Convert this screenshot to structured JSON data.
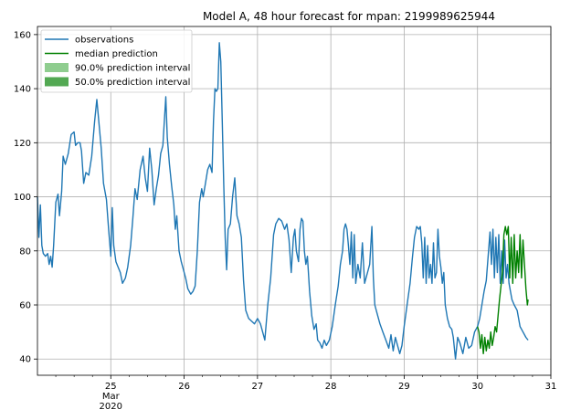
{
  "chart_data": {
    "type": "line",
    "title": "Model A, 48 hour forecast for mpan: 2199989625944",
    "xlabel": "",
    "ylabel": "",
    "x_range": [
      24.0,
      31.0
    ],
    "ylim": [
      34,
      163
    ],
    "grid": true,
    "legend_position": "top-left",
    "x_ticks": [
      {
        "x": 25,
        "label": "25",
        "sublabels": [
          "Mar",
          "2020"
        ]
      },
      {
        "x": 26,
        "label": "26"
      },
      {
        "x": 27,
        "label": "27"
      },
      {
        "x": 28,
        "label": "28"
      },
      {
        "x": 29,
        "label": "29"
      },
      {
        "x": 30,
        "label": "30"
      },
      {
        "x": 31,
        "label": "31"
      }
    ],
    "y_ticks": [
      40,
      60,
      80,
      100,
      120,
      140,
      160
    ],
    "legend": [
      {
        "label": "observations",
        "kind": "line",
        "color": "#1f77b4"
      },
      {
        "label": "median prediction",
        "kind": "line",
        "color": "#008000"
      },
      {
        "label": "90.0% prediction interval",
        "kind": "patch",
        "color": "#8fcd8f"
      },
      {
        "label": "50.0% prediction interval",
        "kind": "patch",
        "color": "#52a852"
      }
    ],
    "series": [
      {
        "name": "observations",
        "color": "#1f77b4",
        "points": [
          [
            24.0,
            100
          ],
          [
            24.02,
            85
          ],
          [
            24.04,
            97
          ],
          [
            24.06,
            82
          ],
          [
            24.08,
            79
          ],
          [
            24.11,
            78
          ],
          [
            24.14,
            79
          ],
          [
            24.16,
            75
          ],
          [
            24.18,
            78
          ],
          [
            24.2,
            74
          ],
          [
            24.22,
            82
          ],
          [
            24.25,
            98
          ],
          [
            24.28,
            101
          ],
          [
            24.3,
            93
          ],
          [
            24.33,
            102
          ],
          [
            24.35,
            115
          ],
          [
            24.38,
            112
          ],
          [
            24.42,
            116
          ],
          [
            24.46,
            123
          ],
          [
            24.5,
            124
          ],
          [
            24.52,
            119
          ],
          [
            24.55,
            120
          ],
          [
            24.58,
            120
          ],
          [
            24.6,
            117
          ],
          [
            24.63,
            105
          ],
          [
            24.66,
            109
          ],
          [
            24.7,
            108
          ],
          [
            24.74,
            115
          ],
          [
            24.78,
            128
          ],
          [
            24.81,
            136
          ],
          [
            24.84,
            127
          ],
          [
            24.87,
            118
          ],
          [
            24.9,
            105
          ],
          [
            24.94,
            99
          ],
          [
            24.97,
            88
          ],
          [
            25.0,
            78
          ],
          [
            25.02,
            96
          ],
          [
            25.04,
            82
          ],
          [
            25.07,
            76
          ],
          [
            25.1,
            74
          ],
          [
            25.13,
            72
          ],
          [
            25.16,
            68
          ],
          [
            25.2,
            70
          ],
          [
            25.23,
            74
          ],
          [
            25.27,
            82
          ],
          [
            25.3,
            92
          ],
          [
            25.33,
            103
          ],
          [
            25.36,
            99
          ],
          [
            25.4,
            110
          ],
          [
            25.44,
            115
          ],
          [
            25.47,
            107
          ],
          [
            25.5,
            102
          ],
          [
            25.53,
            118
          ],
          [
            25.56,
            110
          ],
          [
            25.59,
            97
          ],
          [
            25.62,
            103
          ],
          [
            25.65,
            108
          ],
          [
            25.68,
            116
          ],
          [
            25.71,
            119
          ],
          [
            25.73,
            128
          ],
          [
            25.75,
            137
          ],
          [
            25.77,
            122
          ],
          [
            25.8,
            112
          ],
          [
            25.83,
            104
          ],
          [
            25.86,
            97
          ],
          [
            25.88,
            88
          ],
          [
            25.9,
            93
          ],
          [
            25.93,
            80
          ],
          [
            25.96,
            76
          ],
          [
            25.99,
            73
          ],
          [
            26.02,
            70
          ],
          [
            26.05,
            66
          ],
          [
            26.09,
            64
          ],
          [
            26.12,
            65
          ],
          [
            26.15,
            67
          ],
          [
            26.18,
            80
          ],
          [
            26.21,
            98
          ],
          [
            26.24,
            103
          ],
          [
            26.26,
            100
          ],
          [
            26.29,
            105
          ],
          [
            26.32,
            110
          ],
          [
            26.35,
            112
          ],
          [
            26.38,
            109
          ],
          [
            26.4,
            128
          ],
          [
            26.42,
            140
          ],
          [
            26.44,
            139
          ],
          [
            26.46,
            140
          ],
          [
            26.48,
            157
          ],
          [
            26.5,
            150
          ],
          [
            26.52,
            128
          ],
          [
            26.54,
            105
          ],
          [
            26.56,
            85
          ],
          [
            26.58,
            73
          ],
          [
            26.6,
            88
          ],
          [
            26.63,
            90
          ],
          [
            26.66,
            100
          ],
          [
            26.69,
            107
          ],
          [
            26.72,
            93
          ],
          [
            26.75,
            90
          ],
          [
            26.78,
            85
          ],
          [
            26.81,
            69
          ],
          [
            26.84,
            58
          ],
          [
            26.88,
            55
          ],
          [
            26.92,
            54
          ],
          [
            26.96,
            53
          ],
          [
            27.0,
            55
          ],
          [
            27.04,
            53
          ],
          [
            27.07,
            50
          ],
          [
            27.1,
            47
          ],
          [
            27.14,
            60
          ],
          [
            27.18,
            70
          ],
          [
            27.22,
            86
          ],
          [
            27.25,
            90
          ],
          [
            27.29,
            92
          ],
          [
            27.33,
            91
          ],
          [
            27.37,
            88
          ],
          [
            27.4,
            90
          ],
          [
            27.43,
            84
          ],
          [
            27.46,
            72
          ],
          [
            27.49,
            85
          ],
          [
            27.51,
            88
          ],
          [
            27.53,
            80
          ],
          [
            27.56,
            76
          ],
          [
            27.58,
            88
          ],
          [
            27.6,
            92
          ],
          [
            27.62,
            91
          ],
          [
            27.64,
            80
          ],
          [
            27.66,
            75
          ],
          [
            27.68,
            78
          ],
          [
            27.71,
            65
          ],
          [
            27.74,
            56
          ],
          [
            27.77,
            51
          ],
          [
            27.8,
            53
          ],
          [
            27.82,
            47
          ],
          [
            27.85,
            46
          ],
          [
            27.88,
            44
          ],
          [
            27.91,
            47
          ],
          [
            27.94,
            45
          ],
          [
            27.98,
            47
          ],
          [
            28.02,
            52
          ],
          [
            28.06,
            60
          ],
          [
            28.1,
            67
          ],
          [
            28.13,
            75
          ],
          [
            28.16,
            80
          ],
          [
            28.18,
            88
          ],
          [
            28.2,
            90
          ],
          [
            28.22,
            88
          ],
          [
            28.24,
            82
          ],
          [
            28.26,
            75
          ],
          [
            28.28,
            87
          ],
          [
            28.3,
            70
          ],
          [
            28.32,
            86
          ],
          [
            28.34,
            68
          ],
          [
            28.37,
            75
          ],
          [
            28.4,
            70
          ],
          [
            28.43,
            83
          ],
          [
            28.46,
            68
          ],
          [
            28.5,
            72
          ],
          [
            28.53,
            75
          ],
          [
            28.56,
            89
          ],
          [
            28.58,
            70
          ],
          [
            28.6,
            60
          ],
          [
            28.63,
            57
          ],
          [
            28.67,
            53
          ],
          [
            28.71,
            50
          ],
          [
            28.75,
            47
          ],
          [
            28.79,
            44
          ],
          [
            28.82,
            49
          ],
          [
            28.85,
            43
          ],
          [
            28.88,
            48
          ],
          [
            28.91,
            45
          ],
          [
            28.94,
            42
          ],
          [
            28.97,
            45
          ],
          [
            29.0,
            52
          ],
          [
            29.04,
            60
          ],
          [
            29.08,
            68
          ],
          [
            29.11,
            77
          ],
          [
            29.14,
            85
          ],
          [
            29.17,
            89
          ],
          [
            29.2,
            88
          ],
          [
            29.22,
            89
          ],
          [
            29.24,
            83
          ],
          [
            29.26,
            70
          ],
          [
            29.28,
            85
          ],
          [
            29.3,
            68
          ],
          [
            29.32,
            82
          ],
          [
            29.34,
            70
          ],
          [
            29.36,
            75
          ],
          [
            29.38,
            68
          ],
          [
            29.4,
            83
          ],
          [
            29.42,
            70
          ],
          [
            29.44,
            72
          ],
          [
            29.46,
            88
          ],
          [
            29.48,
            78
          ],
          [
            29.5,
            74
          ],
          [
            29.52,
            68
          ],
          [
            29.54,
            72
          ],
          [
            29.56,
            60
          ],
          [
            29.59,
            55
          ],
          [
            29.62,
            52
          ],
          [
            29.65,
            51
          ],
          [
            29.67,
            48
          ],
          [
            29.7,
            40
          ],
          [
            29.73,
            48
          ],
          [
            29.76,
            46
          ],
          [
            29.8,
            42
          ],
          [
            29.84,
            48
          ],
          [
            29.88,
            44
          ],
          [
            29.92,
            45
          ],
          [
            29.96,
            50
          ],
          [
            30.0,
            52
          ],
          [
            30.03,
            55
          ],
          [
            30.06,
            60
          ],
          [
            30.09,
            65
          ],
          [
            30.12,
            69
          ],
          [
            30.15,
            80
          ],
          [
            30.17,
            87
          ],
          [
            30.19,
            75
          ],
          [
            30.21,
            88
          ],
          [
            30.23,
            70
          ],
          [
            30.25,
            85
          ],
          [
            30.27,
            72
          ],
          [
            30.29,
            86
          ],
          [
            30.31,
            68
          ],
          [
            30.33,
            80
          ],
          [
            30.35,
            68
          ],
          [
            30.37,
            84
          ],
          [
            30.39,
            70
          ],
          [
            30.41,
            75
          ],
          [
            30.43,
            68
          ],
          [
            30.45,
            65
          ],
          [
            30.47,
            62
          ],
          [
            30.5,
            60
          ],
          [
            30.54,
            58
          ],
          [
            30.58,
            52
          ],
          [
            30.62,
            50
          ],
          [
            30.66,
            48
          ],
          [
            30.69,
            47
          ]
        ]
      },
      {
        "name": "median prediction",
        "color": "#008000",
        "points": [
          [
            30.0,
            52
          ],
          [
            30.02,
            50
          ],
          [
            30.04,
            44
          ],
          [
            30.06,
            49
          ],
          [
            30.08,
            42
          ],
          [
            30.1,
            48
          ],
          [
            30.12,
            43
          ],
          [
            30.14,
            47
          ],
          [
            30.16,
            44
          ],
          [
            30.18,
            50
          ],
          [
            30.2,
            45
          ],
          [
            30.22,
            48
          ],
          [
            30.24,
            52
          ],
          [
            30.26,
            50
          ],
          [
            30.28,
            56
          ],
          [
            30.3,
            62
          ],
          [
            30.32,
            67
          ],
          [
            30.34,
            72
          ],
          [
            30.36,
            86
          ],
          [
            30.38,
            89
          ],
          [
            30.4,
            86
          ],
          [
            30.42,
            89
          ],
          [
            30.44,
            70
          ],
          [
            30.46,
            85
          ],
          [
            30.48,
            68
          ],
          [
            30.5,
            86
          ],
          [
            30.52,
            70
          ],
          [
            30.54,
            80
          ],
          [
            30.56,
            72
          ],
          [
            30.58,
            86
          ],
          [
            30.6,
            70
          ],
          [
            30.62,
            84
          ],
          [
            30.64,
            75
          ],
          [
            30.66,
            66
          ],
          [
            30.68,
            60
          ],
          [
            30.69,
            62
          ]
        ]
      }
    ]
  }
}
